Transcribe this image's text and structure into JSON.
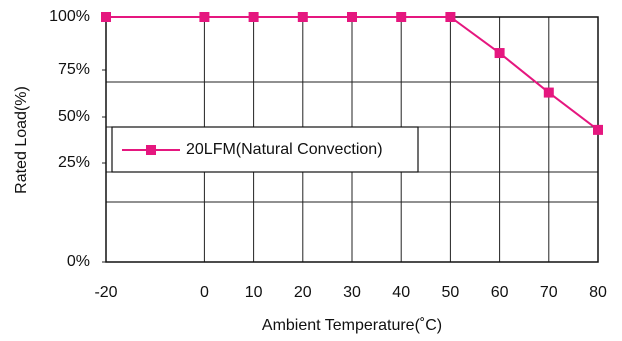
{
  "chart_data": {
    "type": "line",
    "x_label": "Ambient Temperature(˚C)",
    "y_label": "Rated Load(%)",
    "x": [
      -20,
      0,
      10,
      20,
      30,
      40,
      50,
      60,
      70,
      80
    ],
    "series": [
      {
        "name": "20LFM(Natural Convection)",
        "color": "#e5177f",
        "values": [
          100,
          100,
          100,
          100,
          100,
          100,
          100,
          83,
          63,
          43
        ]
      }
    ],
    "xlim": [
      -20,
      80
    ],
    "xticks": [
      -20,
      0,
      10,
      20,
      30,
      40,
      50,
      60,
      70,
      80
    ],
    "ylim": [
      0,
      100
    ],
    "yticks": [
      {
        "value": 0,
        "label": "0%"
      },
      {
        "value": 25,
        "label": "25%"
      },
      {
        "value": 50,
        "label": "50%"
      },
      {
        "value": 75,
        "label": "75%"
      },
      {
        "value": 100,
        "label": "100%"
      }
    ],
    "grid": true,
    "legend": "left"
  }
}
